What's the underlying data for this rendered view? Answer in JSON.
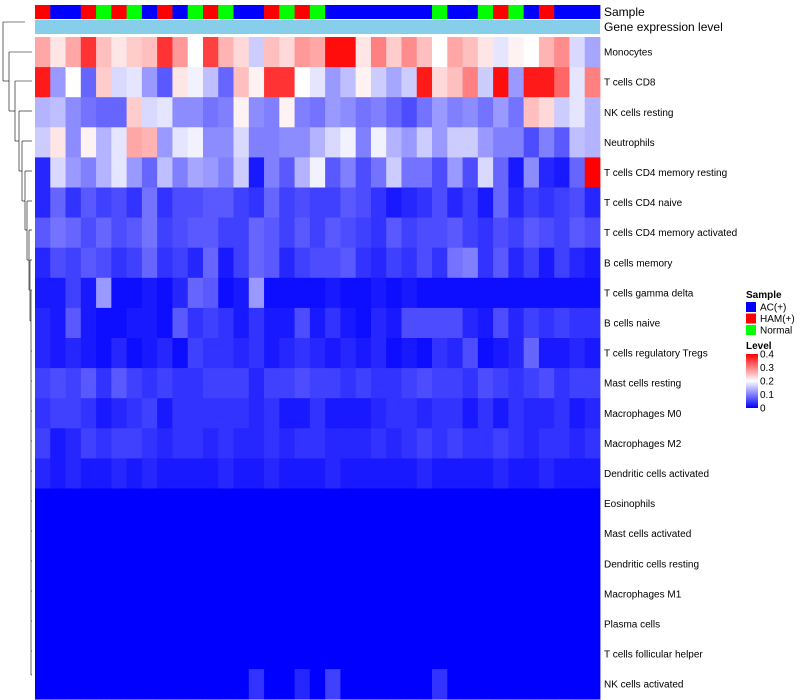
{
  "chart_data": {
    "type": "heatmap",
    "title": "",
    "annotation_labels": {
      "sample": "Sample",
      "gene_expression": "Gene expression level"
    },
    "rows": [
      "Monocytes",
      "T cells CD8",
      "NK cells resting",
      "Neutrophils",
      "T cells CD4 memory resting",
      "T cells CD4 naive",
      "T cells CD4 memory activated",
      "B cells memory",
      "T cells gamma delta",
      "B cells naive",
      "T cells regulatory  Tregs",
      "Mast cells resting",
      "Macrophages M0",
      "Macrophages M2",
      "Dendritic cells activated",
      "Eosinophils",
      "Mast cells activated",
      "Dendritic cells resting",
      "Macrophages M1",
      "Plasma cells",
      "T cells follicular helper",
      "NK cells activated"
    ],
    "sample_groups": [
      "H",
      "A",
      "A",
      "H",
      "N",
      "H",
      "N",
      "A",
      "H",
      "A",
      "N",
      "H",
      "N",
      "A",
      "A",
      "H",
      "N",
      "H",
      "N",
      "A",
      "A",
      "A",
      "A",
      "A",
      "A",
      "A",
      "N",
      "A",
      "A",
      "N",
      "H",
      "N",
      "A",
      "H",
      "A",
      "A",
      "A"
    ],
    "values": [
      [
        0.27,
        0.22,
        0.27,
        0.36,
        0.25,
        0.22,
        0.24,
        0.25,
        0.36,
        0.28,
        0.2,
        0.35,
        0.26,
        0.23,
        0.16,
        0.25,
        0.23,
        0.28,
        0.27,
        0.39,
        0.39,
        0.22,
        0.3,
        0.24,
        0.29,
        0.25,
        0.2,
        0.27,
        0.25,
        0.22,
        0.18,
        0.21,
        0.2,
        0.26,
        0.29,
        0.17,
        0.13
      ],
      [
        0.38,
        0.12,
        0.2,
        0.08,
        0.24,
        0.17,
        0.18,
        0.12,
        0.07,
        0.22,
        0.19,
        0.15,
        0.08,
        0.25,
        0.21,
        0.36,
        0.36,
        0.2,
        0.18,
        0.12,
        0.15,
        0.21,
        0.16,
        0.13,
        0.16,
        0.38,
        0.23,
        0.25,
        0.3,
        0.16,
        0.39,
        0.12,
        0.38,
        0.38,
        0.32,
        0.18,
        0.3
      ],
      [
        0.14,
        0.15,
        0.11,
        0.09,
        0.08,
        0.08,
        0.24,
        0.17,
        0.18,
        0.11,
        0.11,
        0.09,
        0.1,
        0.21,
        0.11,
        0.1,
        0.21,
        0.1,
        0.09,
        0.12,
        0.11,
        0.09,
        0.1,
        0.08,
        0.06,
        0.09,
        0.12,
        0.1,
        0.11,
        0.09,
        0.12,
        0.09,
        0.25,
        0.23,
        0.16,
        0.18,
        0.14
      ],
      [
        0.16,
        0.22,
        0.11,
        0.21,
        0.14,
        0.18,
        0.27,
        0.26,
        0.12,
        0.18,
        0.19,
        0.11,
        0.11,
        0.17,
        0.1,
        0.1,
        0.11,
        0.11,
        0.14,
        0.17,
        0.19,
        0.1,
        0.19,
        0.14,
        0.12,
        0.16,
        0.12,
        0.16,
        0.16,
        0.12,
        0.1,
        0.1,
        0.06,
        0.1,
        0.07,
        0.15,
        0.14
      ],
      [
        0.03,
        0.17,
        0.12,
        0.1,
        0.14,
        0.18,
        0.12,
        0.08,
        0.15,
        0.1,
        0.13,
        0.12,
        0.1,
        0.16,
        0.02,
        0.1,
        0.07,
        0.14,
        0.19,
        0.07,
        0.1,
        0.06,
        0.09,
        0.16,
        0.09,
        0.09,
        0.06,
        0.12,
        0.06,
        0.17,
        0.08,
        0.02,
        0.11,
        0.03,
        0.02,
        0.08,
        0.42
      ],
      [
        0.03,
        0.08,
        0.04,
        0.07,
        0.05,
        0.06,
        0.04,
        0.09,
        0.04,
        0.06,
        0.06,
        0.07,
        0.07,
        0.05,
        0.04,
        0.08,
        0.05,
        0.06,
        0.05,
        0.05,
        0.07,
        0.06,
        0.04,
        0.02,
        0.03,
        0.04,
        0.06,
        0.03,
        0.05,
        0.02,
        0.08,
        0.03,
        0.05,
        0.04,
        0.05,
        0.06,
        0.03
      ],
      [
        0.07,
        0.09,
        0.08,
        0.06,
        0.08,
        0.06,
        0.07,
        0.09,
        0.05,
        0.06,
        0.07,
        0.07,
        0.05,
        0.05,
        0.08,
        0.07,
        0.05,
        0.07,
        0.05,
        0.07,
        0.06,
        0.05,
        0.04,
        0.07,
        0.05,
        0.06,
        0.06,
        0.07,
        0.05,
        0.04,
        0.06,
        0.05,
        0.07,
        0.06,
        0.05,
        0.07,
        0.06
      ],
      [
        0.03,
        0.06,
        0.05,
        0.07,
        0.06,
        0.04,
        0.05,
        0.08,
        0.04,
        0.05,
        0.03,
        0.08,
        0.02,
        0.05,
        0.08,
        0.07,
        0.03,
        0.05,
        0.06,
        0.06,
        0.07,
        0.04,
        0.03,
        0.05,
        0.04,
        0.06,
        0.04,
        0.09,
        0.1,
        0.04,
        0.07,
        0.03,
        0.05,
        0.02,
        0.05,
        0.03,
        0.02
      ],
      [
        0.02,
        0.02,
        0.05,
        0.02,
        0.12,
        0.01,
        0.01,
        0.02,
        0.01,
        0.03,
        0.08,
        0.07,
        0.01,
        0.02,
        0.12,
        0.01,
        0.01,
        0.01,
        0.01,
        0.02,
        0.01,
        0.01,
        0.02,
        0.01,
        0.02,
        0.01,
        0.01,
        0.01,
        0.01,
        0.01,
        0.01,
        0.01,
        0.01,
        0.01,
        0.01,
        0.01,
        0.01
      ],
      [
        0.03,
        0.02,
        0.07,
        0.02,
        0.01,
        0.01,
        0.02,
        0.02,
        0.01,
        0.07,
        0.04,
        0.05,
        0.04,
        0.02,
        0.04,
        0.02,
        0.02,
        0.06,
        0.02,
        0.04,
        0.02,
        0.01,
        0.03,
        0.02,
        0.06,
        0.06,
        0.06,
        0.06,
        0.03,
        0.02,
        0.06,
        0.03,
        0.05,
        0.04,
        0.05,
        0.04,
        0.04
      ],
      [
        0.03,
        0.02,
        0.03,
        0.02,
        0.01,
        0.03,
        0.01,
        0.02,
        0.03,
        0.01,
        0.05,
        0.04,
        0.04,
        0.03,
        0.04,
        0.02,
        0.03,
        0.04,
        0.03,
        0.02,
        0.03,
        0.02,
        0.03,
        0.01,
        0.02,
        0.01,
        0.04,
        0.03,
        0.06,
        0.01,
        0.02,
        0.03,
        0.08,
        0.02,
        0.02,
        0.03,
        0.02
      ],
      [
        0.05,
        0.06,
        0.05,
        0.07,
        0.04,
        0.07,
        0.05,
        0.04,
        0.05,
        0.04,
        0.04,
        0.05,
        0.05,
        0.05,
        0.03,
        0.05,
        0.05,
        0.06,
        0.05,
        0.05,
        0.04,
        0.05,
        0.04,
        0.04,
        0.05,
        0.06,
        0.05,
        0.05,
        0.04,
        0.06,
        0.05,
        0.04,
        0.05,
        0.06,
        0.04,
        0.05,
        0.05
      ],
      [
        0.04,
        0.05,
        0.05,
        0.04,
        0.02,
        0.03,
        0.04,
        0.05,
        0.02,
        0.04,
        0.04,
        0.04,
        0.04,
        0.04,
        0.03,
        0.04,
        0.02,
        0.02,
        0.04,
        0.02,
        0.02,
        0.02,
        0.03,
        0.04,
        0.04,
        0.03,
        0.04,
        0.04,
        0.02,
        0.04,
        0.02,
        0.04,
        0.03,
        0.03,
        0.04,
        0.02,
        0.03
      ],
      [
        0.05,
        0.02,
        0.03,
        0.05,
        0.04,
        0.05,
        0.05,
        0.04,
        0.03,
        0.04,
        0.04,
        0.03,
        0.04,
        0.03,
        0.03,
        0.04,
        0.03,
        0.04,
        0.04,
        0.03,
        0.03,
        0.03,
        0.04,
        0.03,
        0.04,
        0.05,
        0.04,
        0.05,
        0.04,
        0.04,
        0.05,
        0.04,
        0.03,
        0.04,
        0.04,
        0.03,
        0.04
      ],
      [
        0.03,
        0.02,
        0.03,
        0.02,
        0.02,
        0.03,
        0.02,
        0.03,
        0.02,
        0.02,
        0.02,
        0.02,
        0.03,
        0.02,
        0.02,
        0.03,
        0.02,
        0.02,
        0.02,
        0.03,
        0.02,
        0.02,
        0.02,
        0.02,
        0.02,
        0.03,
        0.02,
        0.02,
        0.02,
        0.02,
        0.03,
        0.02,
        0.02,
        0.03,
        0.02,
        0.02,
        0.02
      ],
      [
        0,
        0,
        0,
        0,
        0,
        0,
        0,
        0,
        0,
        0,
        0,
        0,
        0,
        0,
        0,
        0,
        0,
        0,
        0,
        0,
        0,
        0,
        0,
        0,
        0,
        0,
        0,
        0,
        0,
        0,
        0,
        0,
        0,
        0,
        0,
        0,
        0
      ],
      [
        0,
        0,
        0,
        0,
        0,
        0,
        0,
        0,
        0,
        0,
        0,
        0,
        0,
        0,
        0,
        0,
        0,
        0,
        0,
        0,
        0,
        0,
        0,
        0,
        0,
        0,
        0,
        0,
        0,
        0,
        0,
        0,
        0,
        0,
        0,
        0,
        0
      ],
      [
        0,
        0,
        0,
        0,
        0,
        0,
        0,
        0,
        0,
        0,
        0,
        0,
        0,
        0,
        0,
        0,
        0,
        0,
        0,
        0,
        0,
        0,
        0,
        0,
        0,
        0,
        0,
        0,
        0,
        0,
        0,
        0,
        0,
        0,
        0,
        0,
        0
      ],
      [
        0,
        0,
        0,
        0,
        0,
        0,
        0,
        0,
        0,
        0,
        0,
        0,
        0,
        0,
        0,
        0,
        0,
        0,
        0,
        0,
        0,
        0,
        0,
        0,
        0,
        0,
        0,
        0,
        0,
        0,
        0,
        0,
        0,
        0,
        0,
        0,
        0
      ],
      [
        0,
        0,
        0,
        0,
        0,
        0,
        0,
        0,
        0,
        0,
        0,
        0,
        0,
        0,
        0,
        0,
        0,
        0,
        0,
        0,
        0,
        0,
        0,
        0,
        0,
        0,
        0,
        0,
        0,
        0,
        0,
        0,
        0,
        0,
        0,
        0,
        0
      ],
      [
        0,
        0,
        0,
        0,
        0,
        0,
        0,
        0,
        0,
        0,
        0,
        0,
        0,
        0,
        0,
        0,
        0,
        0,
        0,
        0,
        0,
        0,
        0,
        0,
        0,
        0,
        0,
        0,
        0,
        0,
        0,
        0,
        0,
        0,
        0,
        0,
        0
      ],
      [
        0,
        0,
        0,
        0,
        0,
        0,
        0,
        0,
        0,
        0,
        0,
        0,
        0,
        0,
        0.04,
        0,
        0,
        0.03,
        0,
        0.05,
        0,
        0,
        0,
        0,
        0,
        0,
        0.04,
        0,
        0,
        0,
        0,
        0,
        0,
        0,
        0,
        0,
        0
      ]
    ],
    "legend": {
      "sample": {
        "title": "Sample",
        "items": [
          {
            "key": "A",
            "label": "AC(+)",
            "color": "#0000ff"
          },
          {
            "key": "H",
            "label": "HAM(+)",
            "color": "#ff0000"
          },
          {
            "key": "N",
            "label": "Normal",
            "color": "#00ff00"
          }
        ]
      },
      "level": {
        "title": "Level",
        "ticks": [
          "0.4",
          "0.3",
          "0.2",
          "0.1",
          "0"
        ],
        "min": 0,
        "max": 0.4
      }
    },
    "colors": {
      "low": "#0000ff",
      "mid": "#ffffff",
      "high": "#ff0000",
      "expression_bar": "#87ceeb"
    }
  }
}
